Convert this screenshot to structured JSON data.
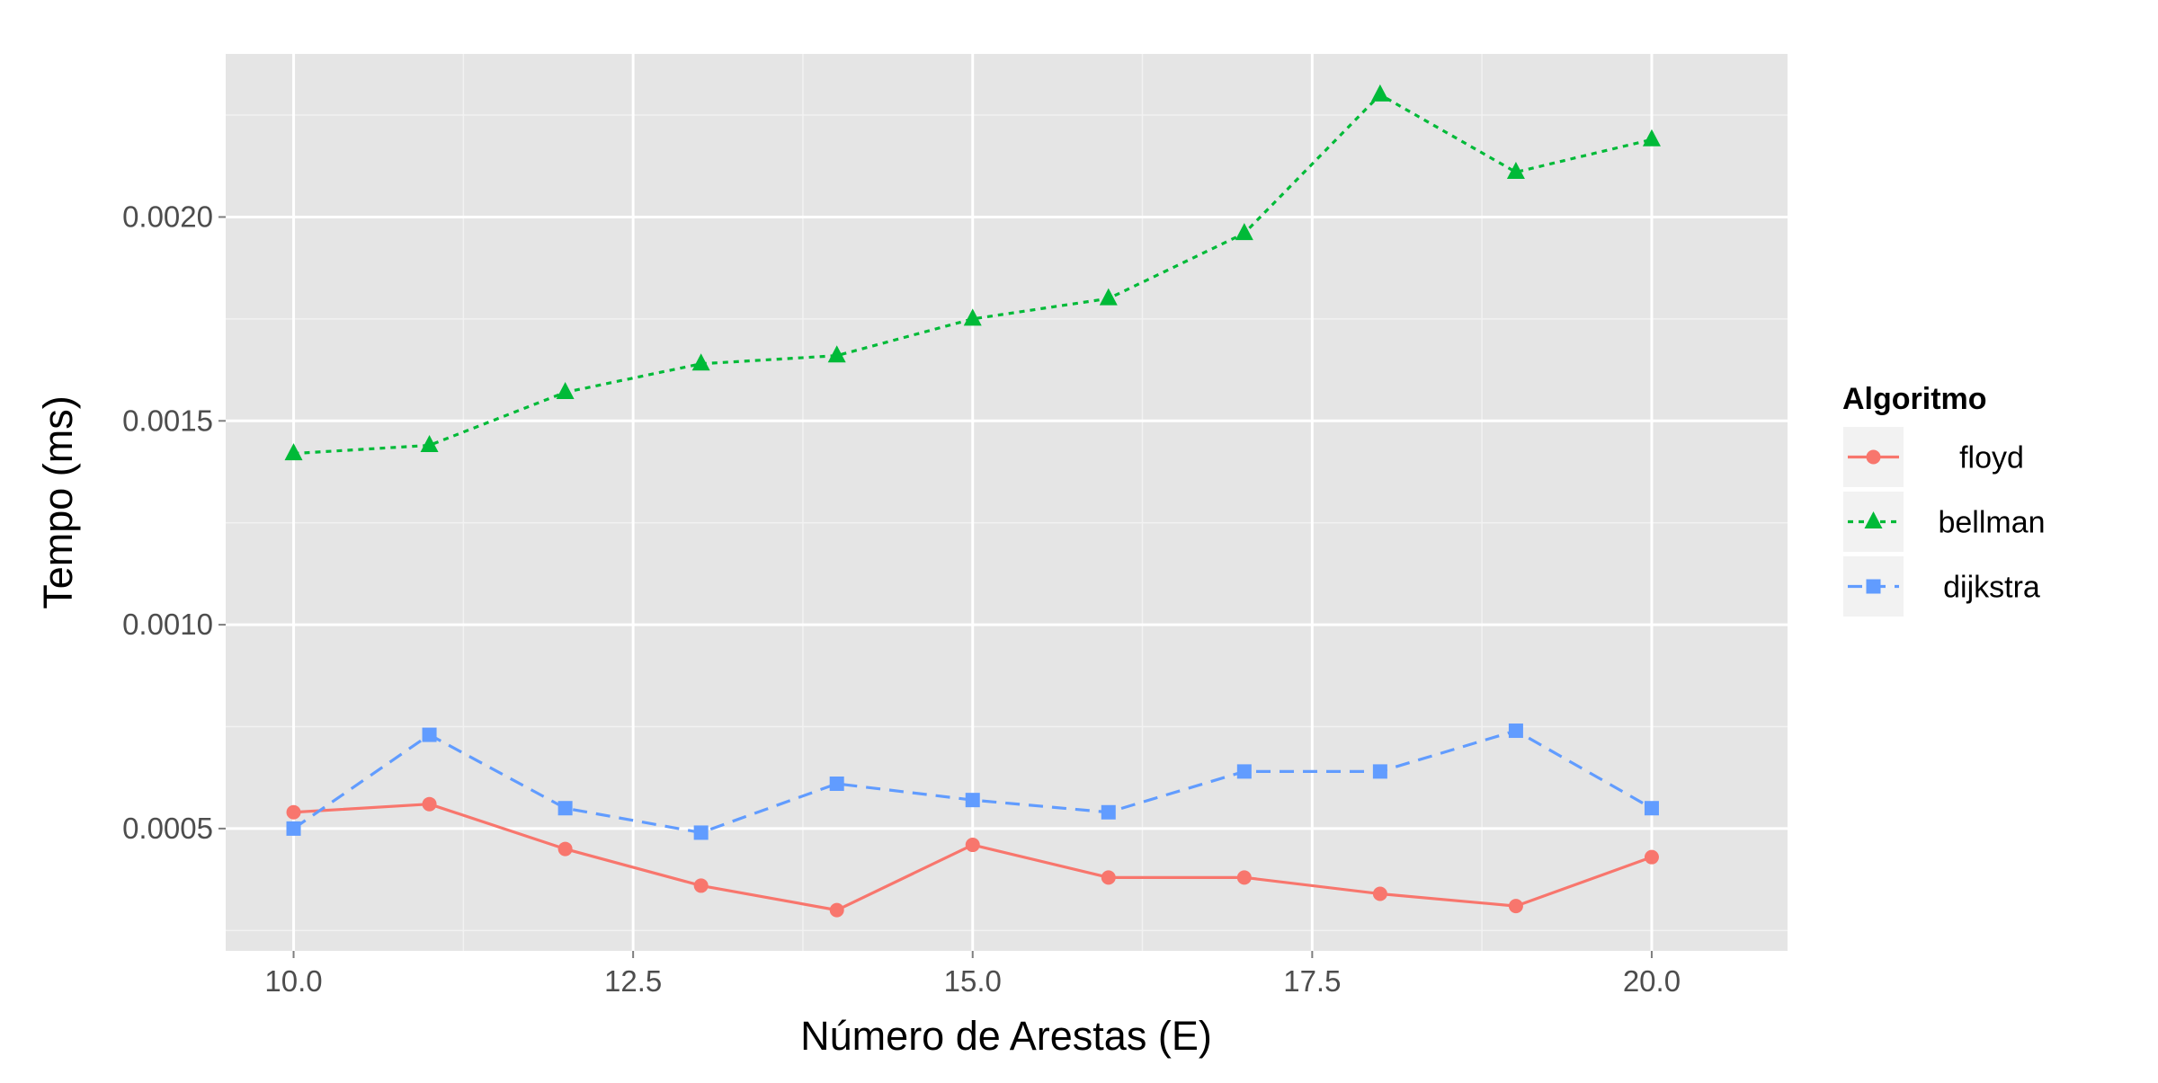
{
  "chart_data": {
    "type": "line",
    "xlabel": "Número de Arestas (E)",
    "ylabel": "Tempo (ms)",
    "x": [
      10,
      11,
      12,
      13,
      14,
      15,
      16,
      17,
      18,
      19,
      20
    ],
    "xlim": [
      9.5,
      21.0
    ],
    "ylim": [
      0.0002,
      0.0024
    ],
    "x_ticks": [
      10.0,
      12.5,
      15.0,
      17.5,
      20.0
    ],
    "x_tick_labels": [
      "10.0",
      "12.5",
      "15.0",
      "17.5",
      "20.0"
    ],
    "y_ticks": [
      0.0005,
      0.001,
      0.0015,
      0.002
    ],
    "y_tick_labels": [
      "0.0005",
      "0.0010",
      "0.0015",
      "0.0020"
    ],
    "grid": true,
    "legend": {
      "title": "Algoritmo",
      "placement": "right"
    },
    "series": [
      {
        "name": "floyd",
        "color": "#F8766D",
        "marker": "circle",
        "linestyle": "solid",
        "values": [
          0.00054,
          0.00056,
          0.00045,
          0.00036,
          0.0003,
          0.00046,
          0.00038,
          0.00038,
          0.00034,
          0.00031,
          0.00043
        ]
      },
      {
        "name": "bellman",
        "color": "#00BA38",
        "marker": "triangle",
        "linestyle": "dotted",
        "values": [
          0.00142,
          0.00144,
          0.00157,
          0.00164,
          0.00166,
          0.00175,
          0.0018,
          0.00196,
          0.0023,
          0.00211,
          0.00219
        ]
      },
      {
        "name": "dijkstra",
        "color": "#619CFF",
        "marker": "square",
        "linestyle": "dashed",
        "values": [
          0.0005,
          0.00073,
          0.00055,
          0.00049,
          0.00061,
          0.00057,
          0.00054,
          0.00064,
          0.00064,
          0.00074,
          0.00055
        ]
      }
    ]
  }
}
